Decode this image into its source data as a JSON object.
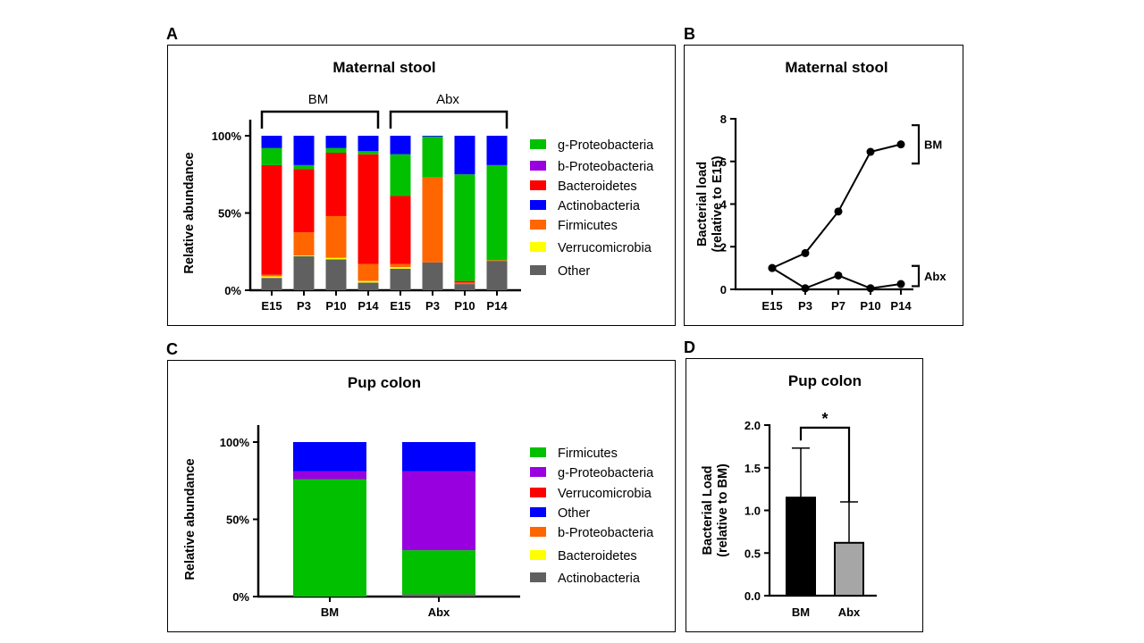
{
  "chart_data": [
    {
      "panel": "A",
      "type": "bar",
      "stacked": true,
      "title": "Maternal stool",
      "ylabel": "Relative abundance",
      "ylim": [
        0,
        100
      ],
      "yticks": [
        "0%",
        "50%",
        "100%"
      ],
      "groups": [
        {
          "label": "BM",
          "categories": [
            "E15",
            "P3",
            "P10",
            "P14"
          ]
        },
        {
          "label": "Abx",
          "categories": [
            "E15",
            "P3",
            "P10",
            "P14"
          ]
        }
      ],
      "categories": [
        "E15",
        "P3",
        "P10",
        "P14",
        "E15",
        "P3",
        "P10",
        "P14"
      ],
      "series": [
        {
          "name": "Other",
          "color": "#606060",
          "values": [
            8,
            22,
            20,
            5,
            14,
            18,
            4,
            19
          ]
        },
        {
          "name": "Verrucomicrobia",
          "color": "#ffff00",
          "values": [
            1,
            0.5,
            1,
            1,
            1,
            0,
            0,
            0
          ]
        },
        {
          "name": "Firmicutes",
          "color": "#ff6600",
          "values": [
            1,
            15,
            27,
            11,
            2,
            55,
            1,
            0.5
          ]
        },
        {
          "name": "Actinobacteria",
          "color": "#0000ff",
          "values": [
            8,
            19,
            8,
            10,
            12,
            0.5,
            25,
            19
          ]
        },
        {
          "name": "Bacteroidetes",
          "color": "#ff0000",
          "values": [
            71,
            41,
            41,
            71,
            44,
            0,
            1,
            0
          ]
        },
        {
          "name": "b-Proteobacteria",
          "color": "#9900e0",
          "values": [
            0,
            0,
            0,
            0,
            0,
            0,
            0,
            0
          ]
        },
        {
          "name": "g-Proteobacteria",
          "color": "#00c000",
          "values": [
            11,
            2.5,
            3,
            2,
            27,
            26.5,
            69,
            61.5
          ]
        }
      ],
      "series_stack_order": [
        "Other",
        "Verrucomicrobia",
        "Firmicutes",
        "Bacteroidetes",
        "g-Proteobacteria",
        "b-Proteobacteria",
        "Actinobacteria"
      ],
      "legend_order": [
        "g-Proteobacteria",
        "b-Proteobacteria",
        "Bacteroidetes",
        "Actinobacteria",
        "Firmicutes",
        "Verrucomicrobia",
        "Other"
      ],
      "legend": "right",
      "grid": false
    },
    {
      "panel": "B",
      "type": "line",
      "title": "Maternal stool",
      "ylabel": "Bacterial load (relative to E15)",
      "ylabel_lines": [
        "Bacterial load",
        "(relative to E15)"
      ],
      "categories": [
        "E15",
        "P3",
        "P7",
        "P10",
        "P14"
      ],
      "ylim": [
        0,
        8
      ],
      "yticks": [
        0,
        2,
        4,
        6,
        8
      ],
      "series": [
        {
          "name": "BM",
          "values": [
            1.0,
            1.7,
            3.65,
            6.45,
            6.8
          ]
        },
        {
          "name": "Abx",
          "values": [
            1.0,
            0.05,
            0.65,
            0.05,
            0.25
          ]
        }
      ],
      "grid": false
    },
    {
      "panel": "C",
      "type": "bar",
      "stacked": true,
      "title": "Pup colon",
      "ylabel": "Relative abundance",
      "ylim": [
        0,
        100
      ],
      "yticks": [
        "0%",
        "50%",
        "100%"
      ],
      "categories": [
        "BM",
        "Abx"
      ],
      "series": [
        {
          "name": "Actinobacteria",
          "color": "#606060",
          "values": [
            0,
            1.5
          ]
        },
        {
          "name": "Bacteroidetes",
          "color": "#ffff00",
          "values": [
            0,
            0
          ]
        },
        {
          "name": "Firmicutes",
          "color": "#00c000",
          "values": [
            76,
            28.5
          ]
        },
        {
          "name": "g-Proteobacteria",
          "color": "#9900e0",
          "values": [
            5,
            51
          ]
        },
        {
          "name": "Verrucomicrobia",
          "color": "#ff0000",
          "values": [
            0,
            0
          ]
        },
        {
          "name": "b-Proteobacteria",
          "color": "#ff6600",
          "values": [
            0,
            0
          ]
        },
        {
          "name": "Other",
          "color": "#0000ff",
          "values": [
            19,
            19
          ]
        }
      ],
      "legend_order": [
        "Firmicutes",
        "g-Proteobacteria",
        "Verrucomicrobia",
        "Other",
        "b-Proteobacteria",
        "Bacteroidetes",
        "Actinobacteria"
      ],
      "legend": "right",
      "grid": false
    },
    {
      "panel": "D",
      "type": "bar",
      "title": "Pup colon",
      "ylabel": "Bacterial Load (relative to BM)",
      "ylabel_lines": [
        "Bacterial  Load",
        "(relative to BM)"
      ],
      "categories": [
        "BM",
        "Abx"
      ],
      "values": [
        1.15,
        0.62
      ],
      "errors": [
        0.58,
        0.48
      ],
      "colors": [
        "#000000",
        "#a6a6a6"
      ],
      "ylim": [
        0,
        2.0
      ],
      "yticks": [
        "0.0",
        "0.5",
        "1.0",
        "1.5",
        "2.0"
      ],
      "significance": "*",
      "grid": false
    }
  ]
}
